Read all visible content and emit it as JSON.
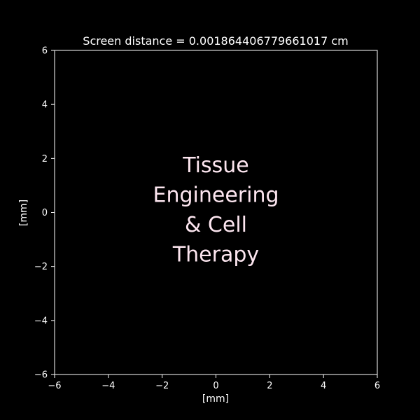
{
  "chart_data": {
    "type": "image",
    "title": "Screen distance = 0.001864406779661017 cm",
    "xlabel": "[mm]",
    "ylabel": "[mm]",
    "xlim": [
      -6,
      6
    ],
    "ylim": [
      -6,
      6
    ],
    "x_ticks": [
      -6,
      -4,
      -2,
      0,
      2,
      4,
      6
    ],
    "y_ticks": [
      -6,
      -4,
      -2,
      0,
      2,
      4,
      6
    ],
    "grid": false,
    "legend": "none",
    "image_text_lines": [
      "Tissue",
      "Engineering",
      "& Cell",
      "Therapy"
    ],
    "colors": {
      "background": "#000000",
      "axes": "#ffffff",
      "image_text": "#fde6f0"
    }
  }
}
